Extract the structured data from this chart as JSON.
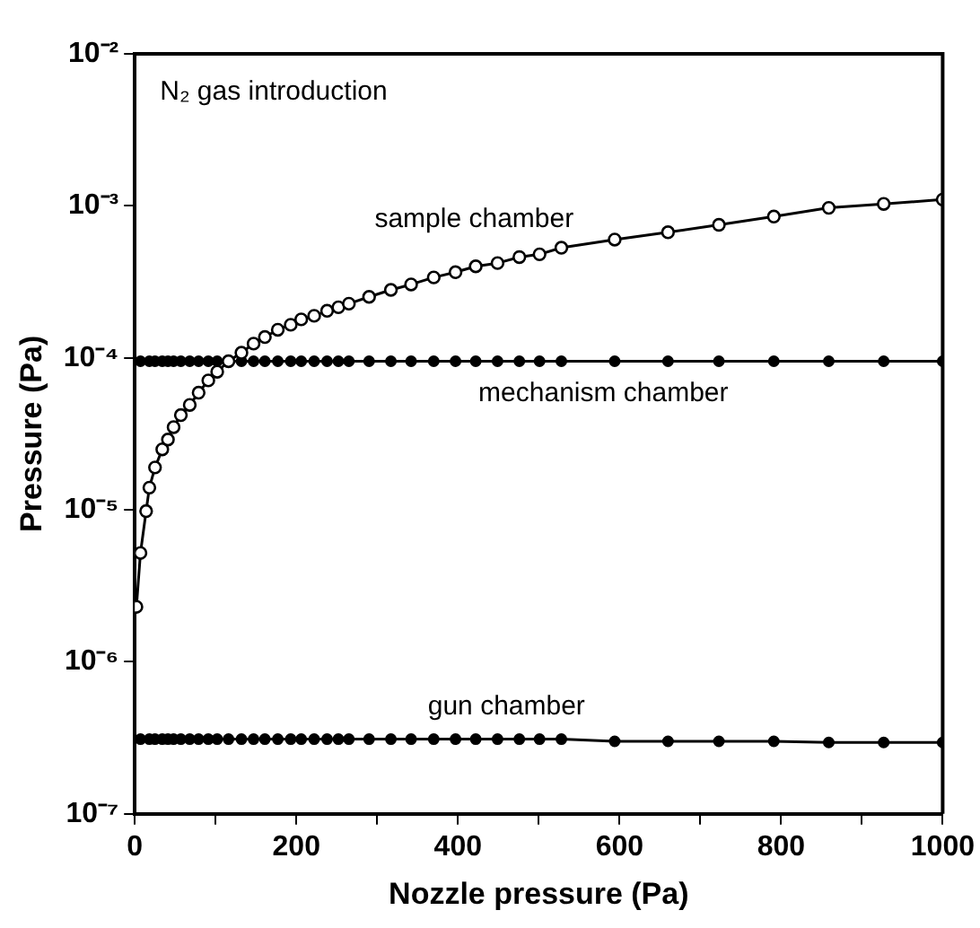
{
  "chart_data": {
    "type": "line",
    "xlabel": "Nozzle pressure (Pa)",
    "ylabel": "Pressure (Pa)",
    "log": "y",
    "annotations": [
      "N₂ gas introduction"
    ],
    "xlim": [
      0,
      1000
    ],
    "xticks": [
      0,
      {
        "value": 100,
        "label": null
      },
      200,
      {
        "value": 300,
        "label": null
      },
      400,
      {
        "value": 500,
        "label": null
      },
      600,
      {
        "value": 700,
        "label": null
      },
      800,
      {
        "value": 900,
        "label": null
      },
      1000
    ],
    "ylim": [
      1e-07,
      0.01
    ],
    "yticks": [
      {
        "value": 1e-07,
        "label": "10⁻⁷"
      },
      {
        "value": 1e-06,
        "label": "10⁻⁶"
      },
      {
        "value": 1e-05,
        "label": "10⁻⁵"
      },
      {
        "value": 0.0001,
        "label": "10⁻⁴"
      },
      {
        "value": 0.001,
        "label": "10⁻³"
      },
      {
        "value": 0.01,
        "label": "10⁻²"
      }
    ],
    "grid": false,
    "legend": false,
    "marker": "circle",
    "line_style": "solid",
    "series": [
      {
        "name": "sample chamber",
        "color": "#000000",
        "x": [
          2,
          7,
          14,
          18,
          25,
          34,
          41,
          48,
          57,
          68,
          79,
          91,
          102,
          116,
          132,
          147,
          161,
          177,
          193,
          206,
          222,
          238,
          252,
          265,
          290,
          317,
          342,
          370,
          397,
          422,
          449,
          476,
          501,
          528,
          594,
          660,
          723,
          791,
          859,
          927,
          1000
        ],
        "values": [
          2.3e-06,
          5.2e-06,
          9.8e-06,
          1.4e-05,
          1.9e-05,
          2.5e-05,
          2.9e-05,
          3.5e-05,
          4.2e-05,
          4.9e-05,
          5.9e-05,
          7.1e-05,
          8.1e-05,
          9.5e-05,
          0.000108,
          0.000124,
          0.000137,
          0.000153,
          0.000165,
          0.000179,
          0.000189,
          0.000204,
          0.000215,
          0.000227,
          0.000252,
          0.00028,
          0.000304,
          0.000338,
          0.000366,
          0.0004,
          0.00042,
          0.00046,
          0.00048,
          0.00053,
          0.0006,
          0.00067,
          0.00075,
          0.00085,
          0.00097,
          0.00103,
          0.0011
        ]
      },
      {
        "name": "mechanism chamber",
        "color": "#000000",
        "x": [
          7,
          18,
          25,
          34,
          41,
          48,
          57,
          68,
          79,
          91,
          102,
          116,
          132,
          147,
          161,
          177,
          193,
          206,
          222,
          238,
          252,
          265,
          290,
          317,
          342,
          370,
          397,
          422,
          449,
          476,
          501,
          528,
          594,
          660,
          723,
          791,
          859,
          927,
          1000
        ],
        "values": [
          9.5e-05,
          9.5e-05,
          9.5e-05,
          9.5e-05,
          9.5e-05,
          9.5e-05,
          9.5e-05,
          9.5e-05,
          9.5e-05,
          9.5e-05,
          9.5e-05,
          9.5e-05,
          9.5e-05,
          9.5e-05,
          9.5e-05,
          9.5e-05,
          9.5e-05,
          9.5e-05,
          9.5e-05,
          9.5e-05,
          9.5e-05,
          9.5e-05,
          9.5e-05,
          9.5e-05,
          9.5e-05,
          9.5e-05,
          9.5e-05,
          9.5e-05,
          9.5e-05,
          9.5e-05,
          9.5e-05,
          9.5e-05,
          9.5e-05,
          9.5e-05,
          9.5e-05,
          9.5e-05,
          9.5e-05,
          9.5e-05,
          9.5e-05
        ]
      },
      {
        "name": "gun chamber",
        "color": "#000000",
        "x": [
          7,
          18,
          25,
          34,
          41,
          48,
          57,
          68,
          79,
          91,
          102,
          116,
          132,
          147,
          161,
          177,
          193,
          206,
          222,
          238,
          252,
          265,
          290,
          317,
          342,
          370,
          397,
          422,
          449,
          476,
          501,
          528,
          594,
          660,
          723,
          791,
          859,
          927,
          1000
        ],
        "values": [
          3.1e-07,
          3.1e-07,
          3.1e-07,
          3.1e-07,
          3.1e-07,
          3.1e-07,
          3.1e-07,
          3.1e-07,
          3.1e-07,
          3.1e-07,
          3.1e-07,
          3.1e-07,
          3.1e-07,
          3.1e-07,
          3.1e-07,
          3.1e-07,
          3.1e-07,
          3.1e-07,
          3.1e-07,
          3.1e-07,
          3.1e-07,
          3.1e-07,
          3.1e-07,
          3.1e-07,
          3.1e-07,
          3.1e-07,
          3.1e-07,
          3.1e-07,
          3.1e-07,
          3.1e-07,
          3.1e-07,
          3.1e-07,
          3e-07,
          3e-07,
          3e-07,
          3e-07,
          2.95e-07,
          2.95e-07,
          2.95e-07
        ]
      }
    ]
  }
}
